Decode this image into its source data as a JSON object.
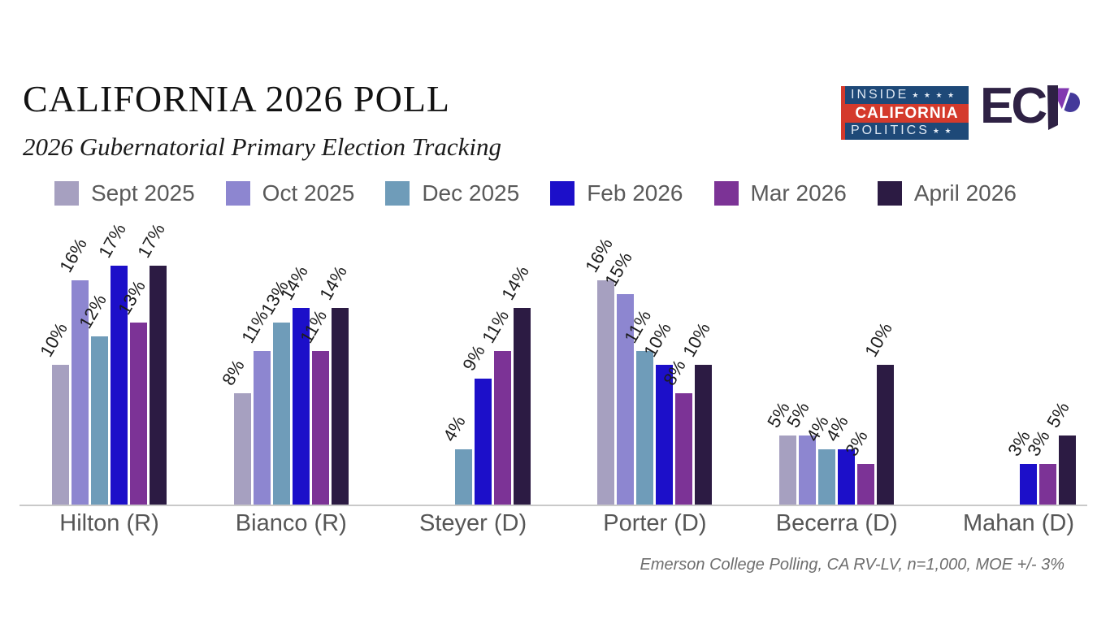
{
  "page": {
    "title": "CALIFORNIA 2026 POLL",
    "subtitle": "2026 Gubernatorial Primary Election Tracking",
    "source_note": "Emerson College Polling, CA RV-LV, n=1,000, MOE +/- 3%"
  },
  "logos": {
    "inside_california_politics": {
      "line1": "INSIDE",
      "line1_stars": "★ ★ ★ ★",
      "line2": "CALIFORNIA",
      "line3": "POLITICS",
      "line3_stars": "★ ★",
      "blue": "#1e4978",
      "red": "#d43a2c"
    },
    "emerson_college_polling": {
      "letters": "EC",
      "p_dark": "#2e2144",
      "p_purple": "#8238b0",
      "p_indigo": "#44399a"
    }
  },
  "chart_data": {
    "type": "bar",
    "title": "CALIFORNIA 2026 POLL",
    "subtitle": "2026 Gubernatorial Primary Election Tracking",
    "unit": "%",
    "categories": [
      "Hilton (R)",
      "Bianco (R)",
      "Steyer (D)",
      "Porter (D)",
      "Becerra (D)",
      "Mahan (D)"
    ],
    "series": [
      {
        "name": "Sept 2025",
        "color": "#a6a0c0",
        "values": [
          10,
          8,
          null,
          16,
          5,
          null
        ]
      },
      {
        "name": "Oct 2025",
        "color": "#8d86d0",
        "values": [
          16,
          11,
          null,
          15,
          5,
          null
        ]
      },
      {
        "name": "Dec 2025",
        "color": "#6f9cb9",
        "values": [
          12,
          13,
          4,
          11,
          4,
          null
        ]
      },
      {
        "name": "Feb 2026",
        "color": "#1c0fc9",
        "values": [
          17,
          14,
          9,
          10,
          4,
          3
        ]
      },
      {
        "name": "Mar 2026",
        "color": "#7c3396",
        "values": [
          13,
          11,
          11,
          8,
          3,
          3
        ]
      },
      {
        "name": "April 2026",
        "color": "#2c1b43",
        "values": [
          17,
          14,
          14,
          10,
          10,
          5
        ]
      }
    ],
    "ylim": [
      0,
      18
    ],
    "grid": false,
    "legend_position": "top",
    "value_labels": "rotated-diagonal",
    "source": "Emerson College Polling, CA RV-LV, n=1,000, MOE +/- 3%"
  },
  "colors": {
    "background": "#ffffff",
    "axis_line": "#c9c9c9",
    "category_label": "#565656",
    "legend_label": "#5a5a5a",
    "value_label": "#1c1c1c"
  }
}
